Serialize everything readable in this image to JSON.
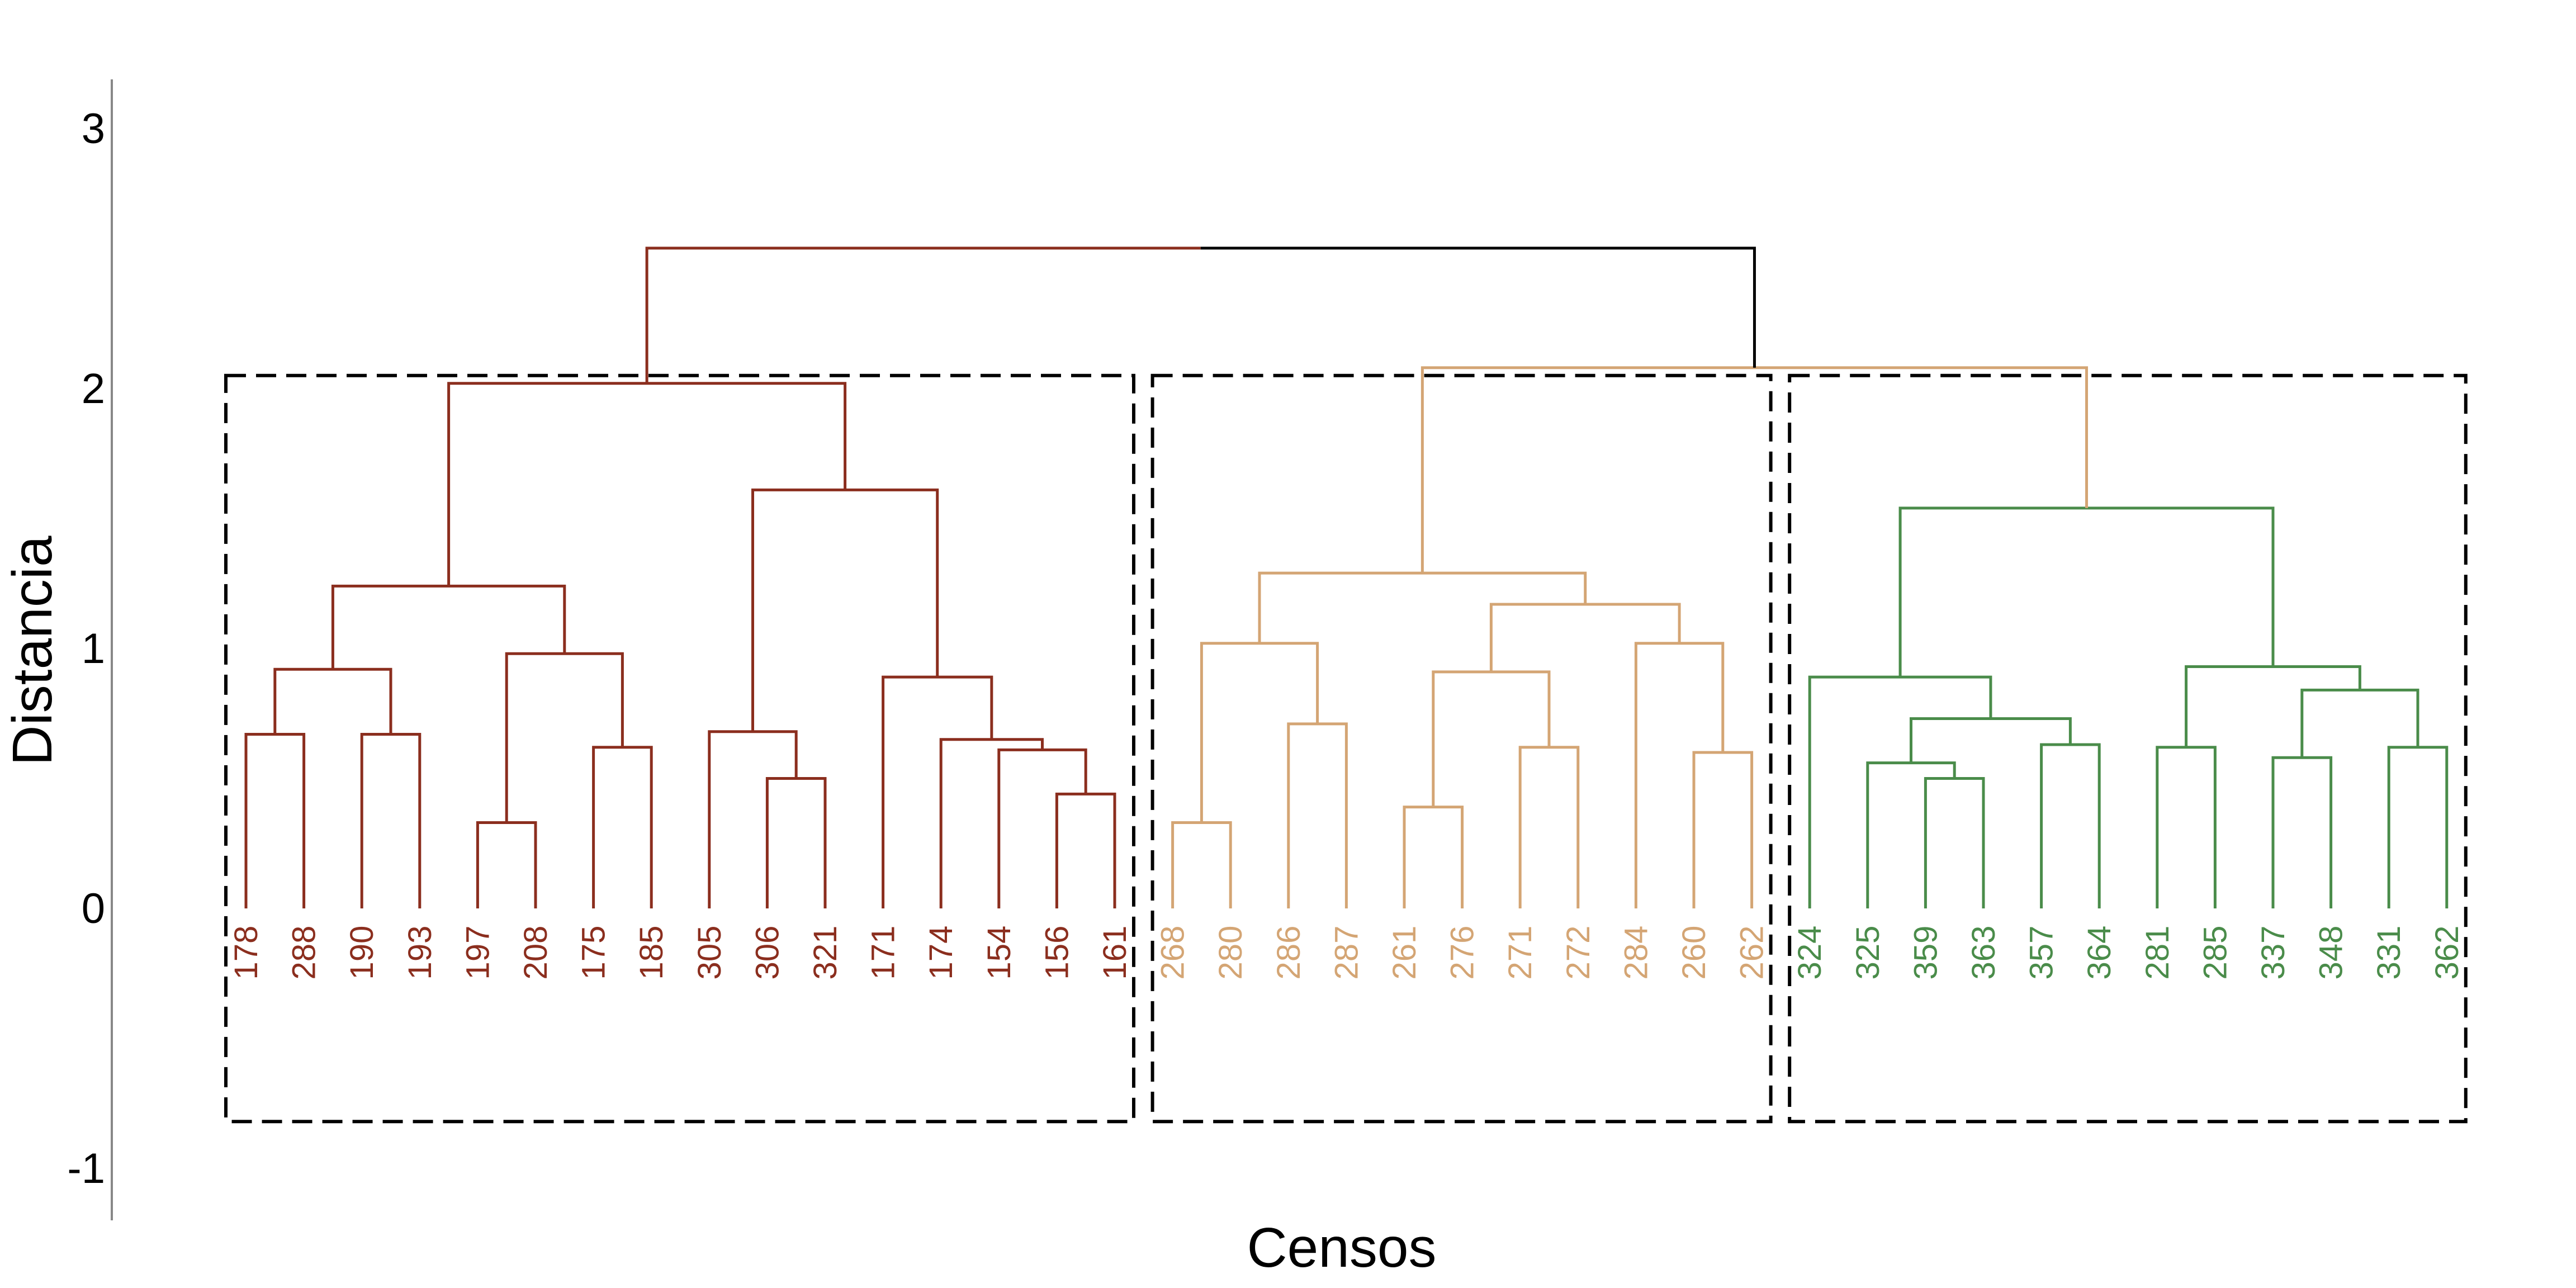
{
  "chart_data": {
    "type": "dendrogram",
    "title": "",
    "xlabel": "Censos",
    "ylabel": "Distancia",
    "ylim": [
      -1.1,
      3.2
    ],
    "yticks": [
      3,
      2,
      1,
      0,
      -1
    ],
    "grid": false,
    "legend": "none",
    "label_offset": -0.17,
    "box_bottom": -0.82,
    "colors": {
      "cluster1": "#8B2E1E",
      "cluster2": "#D4A574",
      "cluster3": "#4A8C4A",
      "root": "#000000",
      "axis": "#888888",
      "box": "#000000"
    },
    "leaves": [
      {
        "label": "178",
        "cluster": 1
      },
      {
        "label": "288",
        "cluster": 1
      },
      {
        "label": "190",
        "cluster": 1
      },
      {
        "label": "193",
        "cluster": 1
      },
      {
        "label": "197",
        "cluster": 1
      },
      {
        "label": "208",
        "cluster": 1
      },
      {
        "label": "175",
        "cluster": 1
      },
      {
        "label": "185",
        "cluster": 1
      },
      {
        "label": "305",
        "cluster": 1
      },
      {
        "label": "306",
        "cluster": 1
      },
      {
        "label": "321",
        "cluster": 1
      },
      {
        "label": "171",
        "cluster": 1
      },
      {
        "label": "174",
        "cluster": 1
      },
      {
        "label": "154",
        "cluster": 1
      },
      {
        "label": "156",
        "cluster": 1
      },
      {
        "label": "161",
        "cluster": 1
      },
      {
        "label": "268",
        "cluster": 2
      },
      {
        "label": "280",
        "cluster": 2
      },
      {
        "label": "286",
        "cluster": 2
      },
      {
        "label": "287",
        "cluster": 2
      },
      {
        "label": "261",
        "cluster": 2
      },
      {
        "label": "276",
        "cluster": 2
      },
      {
        "label": "271",
        "cluster": 2
      },
      {
        "label": "272",
        "cluster": 2
      },
      {
        "label": "284",
        "cluster": 2
      },
      {
        "label": "260",
        "cluster": 2
      },
      {
        "label": "262",
        "cluster": 2
      },
      {
        "label": "324",
        "cluster": 3
      },
      {
        "label": "325",
        "cluster": 3
      },
      {
        "label": "359",
        "cluster": 3
      },
      {
        "label": "363",
        "cluster": 3
      },
      {
        "label": "357",
        "cluster": 3
      },
      {
        "label": "364",
        "cluster": 3
      },
      {
        "label": "281",
        "cluster": 3
      },
      {
        "label": "285",
        "cluster": 3
      },
      {
        "label": "337",
        "cluster": 3
      },
      {
        "label": "348",
        "cluster": 3
      },
      {
        "label": "331",
        "cluster": 3
      },
      {
        "label": "362",
        "cluster": 3
      }
    ],
    "merges": [
      {
        "id": "a1",
        "left": 0,
        "right": 1,
        "height": 0.67,
        "cluster": 1
      },
      {
        "id": "a2",
        "left": 2,
        "right": 3,
        "height": 0.67,
        "cluster": 1
      },
      {
        "id": "a3",
        "left": "a1",
        "right": "a2",
        "height": 0.92,
        "cluster": 1
      },
      {
        "id": "a4",
        "left": 4,
        "right": 5,
        "height": 0.33,
        "cluster": 1
      },
      {
        "id": "a5",
        "left": 6,
        "right": 7,
        "height": 0.62,
        "cluster": 1
      },
      {
        "id": "a6",
        "left": "a4",
        "right": "a5",
        "height": 0.98,
        "cluster": 1
      },
      {
        "id": "a7",
        "left": "a3",
        "right": "a6",
        "height": 1.24,
        "cluster": 1
      },
      {
        "id": "a8",
        "left": 9,
        "right": 10,
        "height": 0.5,
        "cluster": 1
      },
      {
        "id": "a9",
        "left": 8,
        "right": "a8",
        "height": 0.68,
        "cluster": 1
      },
      {
        "id": "a10",
        "left": 14,
        "right": 15,
        "height": 0.44,
        "cluster": 1
      },
      {
        "id": "a11",
        "left": 13,
        "right": "a10",
        "height": 0.61,
        "cluster": 1
      },
      {
        "id": "a12",
        "left": 12,
        "right": "a11",
        "height": 0.65,
        "cluster": 1
      },
      {
        "id": "a13",
        "left": 11,
        "right": "a12",
        "height": 0.89,
        "cluster": 1
      },
      {
        "id": "a14",
        "left": "a9",
        "right": "a13",
        "height": 1.61,
        "cluster": 1
      },
      {
        "id": "a15",
        "left": "a7",
        "right": "a14",
        "height": 2.02,
        "cluster": 1
      },
      {
        "id": "b1",
        "left": 16,
        "right": 17,
        "height": 0.33,
        "cluster": 2
      },
      {
        "id": "b2",
        "left": 18,
        "right": 19,
        "height": 0.71,
        "cluster": 2
      },
      {
        "id": "b3",
        "left": "b1",
        "right": "b2",
        "height": 1.02,
        "cluster": 2
      },
      {
        "id": "b4",
        "left": 20,
        "right": 21,
        "height": 0.39,
        "cluster": 2
      },
      {
        "id": "b5",
        "left": 22,
        "right": 23,
        "height": 0.62,
        "cluster": 2
      },
      {
        "id": "b6",
        "left": "b4",
        "right": "b5",
        "height": 0.91,
        "cluster": 2
      },
      {
        "id": "b7",
        "left": 25,
        "right": 26,
        "height": 0.6,
        "cluster": 2
      },
      {
        "id": "b8",
        "left": 24,
        "right": "b7",
        "height": 1.02,
        "cluster": 2
      },
      {
        "id": "b9",
        "left": "b6",
        "right": "b8",
        "height": 1.17,
        "cluster": 2
      },
      {
        "id": "b10",
        "left": "b3",
        "right": "b9",
        "height": 1.29,
        "cluster": 2
      },
      {
        "id": "c1",
        "left": 29,
        "right": 30,
        "height": 0.5,
        "cluster": 3
      },
      {
        "id": "c2",
        "left": 28,
        "right": "c1",
        "height": 0.56,
        "cluster": 3
      },
      {
        "id": "c3",
        "left": 31,
        "right": 32,
        "height": 0.63,
        "cluster": 3
      },
      {
        "id": "c4",
        "left": "c2",
        "right": "c3",
        "height": 0.73,
        "cluster": 3
      },
      {
        "id": "c5",
        "left": 27,
        "right": "c4",
        "height": 0.89,
        "cluster": 3
      },
      {
        "id": "c6",
        "left": 33,
        "right": 34,
        "height": 0.62,
        "cluster": 3
      },
      {
        "id": "c7",
        "left": 35,
        "right": 36,
        "height": 0.58,
        "cluster": 3
      },
      {
        "id": "c8",
        "left": 37,
        "right": 38,
        "height": 0.62,
        "cluster": 3
      },
      {
        "id": "c9",
        "left": "c7",
        "right": "c8",
        "height": 0.84,
        "cluster": 3
      },
      {
        "id": "c10",
        "left": "c6",
        "right": "c9",
        "height": 0.93,
        "cluster": 3
      },
      {
        "id": "c11",
        "left": "c5",
        "right": "c10",
        "height": 1.54,
        "cluster": 3
      },
      {
        "id": "d1",
        "left": "b10",
        "right": "c11",
        "height": 2.08,
        "cluster": 2
      },
      {
        "id": "root",
        "left": "a15",
        "right": "d1",
        "height": 2.54,
        "cluster": 1,
        "split_color": true
      }
    ],
    "cluster_boxes": [
      {
        "cluster": 1,
        "first_leaf": 0,
        "last_leaf": 15,
        "top": 2.05,
        "bottom": -0.82
      },
      {
        "cluster": 2,
        "first_leaf": 16,
        "last_leaf": 26,
        "top": 2.05,
        "bottom": -0.82
      },
      {
        "cluster": 3,
        "first_leaf": 27,
        "last_leaf": 38,
        "top": 2.05,
        "bottom": -0.82
      }
    ]
  }
}
